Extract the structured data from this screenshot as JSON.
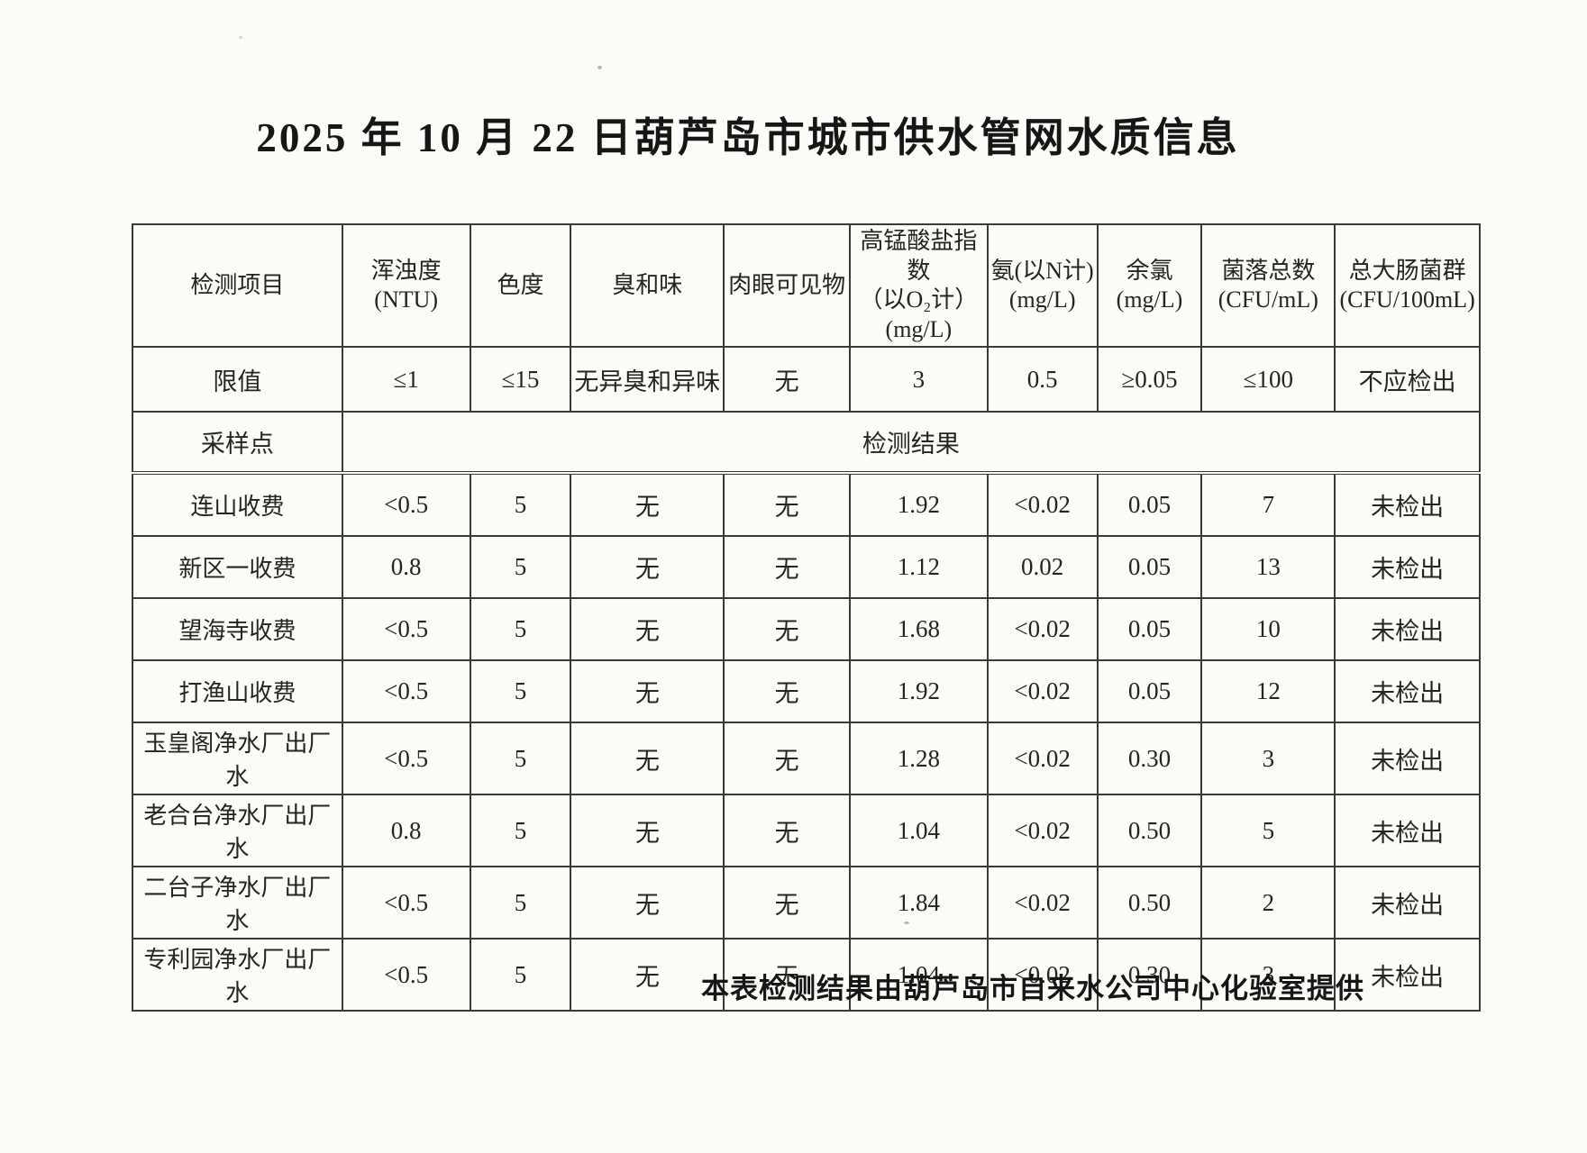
{
  "document": {
    "title": "2025 年 10 月 22 日葫芦岛市城市供水管网水质信息",
    "footer": "本表检测结果由葫芦岛市自来水公司中心化验室提供"
  },
  "table": {
    "header": [
      [
        "检测项目"
      ],
      [
        "浑浊度(NTU)"
      ],
      [
        "色度"
      ],
      [
        "臭和味"
      ],
      [
        "肉眼可见物"
      ],
      [
        "高锰酸盐指数",
        "（以O₂计）",
        "(mg/L)"
      ],
      [
        "氨(以N计)",
        "(mg/L)"
      ],
      [
        "余氯",
        "(mg/L)"
      ],
      [
        "菌落总数",
        "(CFU/mL)"
      ],
      [
        "总大肠菌群",
        "(CFU/100mL)"
      ]
    ],
    "limits_row": {
      "label": "限值",
      "values": [
        "≤1",
        "≤15",
        "无异臭和异味",
        "无",
        "3",
        "0.5",
        "≥0.05",
        "≤100",
        "不应检出"
      ]
    },
    "sampling_row": {
      "label": "采样点",
      "result_label": "检测结果"
    },
    "rows": [
      {
        "site": "连山收费",
        "values": [
          "<0.5",
          "5",
          "无",
          "无",
          "1.92",
          "<0.02",
          "0.05",
          "7",
          "未检出"
        ]
      },
      {
        "site": "新区一收费",
        "values": [
          "0.8",
          "5",
          "无",
          "无",
          "1.12",
          "0.02",
          "0.05",
          "13",
          "未检出"
        ]
      },
      {
        "site": "望海寺收费",
        "values": [
          "<0.5",
          "5",
          "无",
          "无",
          "1.68",
          "<0.02",
          "0.05",
          "10",
          "未检出"
        ]
      },
      {
        "site": "打渔山收费",
        "values": [
          "<0.5",
          "5",
          "无",
          "无",
          "1.92",
          "<0.02",
          "0.05",
          "12",
          "未检出"
        ]
      },
      {
        "site": "玉皇阁净水厂出厂水",
        "values": [
          "<0.5",
          "5",
          "无",
          "无",
          "1.28",
          "<0.02",
          "0.30",
          "3",
          "未检出"
        ]
      },
      {
        "site": "老合台净水厂出厂水",
        "values": [
          "0.8",
          "5",
          "无",
          "无",
          "1.04",
          "<0.02",
          "0.50",
          "5",
          "未检出"
        ]
      },
      {
        "site": "二台子净水厂出厂水",
        "values": [
          "<0.5",
          "5",
          "无",
          "无",
          "1.84",
          "<0.02",
          "0.50",
          "2",
          "未检出"
        ]
      },
      {
        "site": "专利园净水厂出厂水",
        "values": [
          "<0.5",
          "5",
          "无",
          "无",
          "1.04",
          "<0.02",
          "0.30",
          "3",
          "未检出"
        ]
      }
    ]
  }
}
